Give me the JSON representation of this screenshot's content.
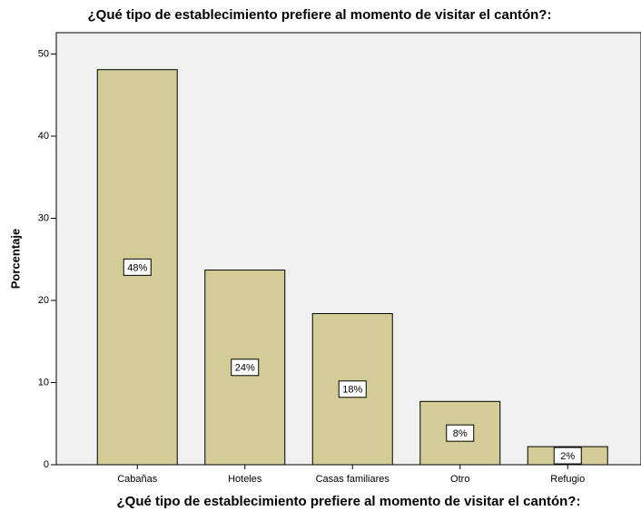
{
  "chart_data": {
    "type": "bar",
    "title": "¿Qué tipo de establecimiento prefiere al momento de visitar el cantón?:",
    "x_label": "¿Qué tipo de establecimiento prefiere al momento de visitar el cantón?:",
    "y_label": "Porcentaje",
    "categories": [
      "Cabañas",
      "Hoteles",
      "Casas familiares",
      "Otro",
      "Refugio"
    ],
    "values": [
      48.1,
      23.7,
      18.4,
      7.7,
      2.2
    ],
    "value_labels": [
      "48%",
      "24%",
      "18%",
      "8%",
      "2%"
    ],
    "color": "#d4cc96",
    "ylim": [
      0,
      52.6
    ],
    "yticks": [
      0,
      10,
      20,
      30,
      40,
      50
    ],
    "grid": false
  }
}
